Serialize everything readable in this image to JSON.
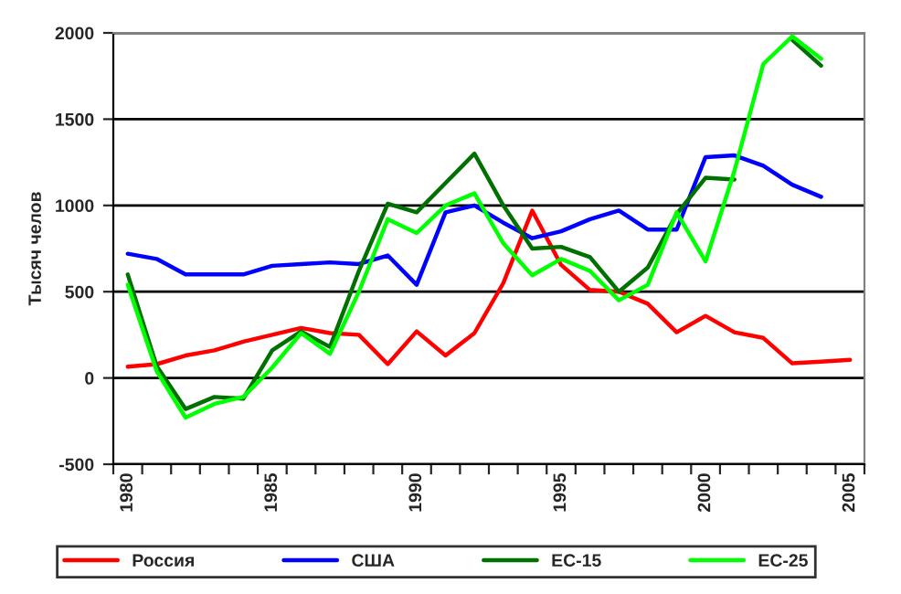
{
  "chart_data": {
    "type": "line",
    "ylabel": "Тысяч челов",
    "categories": [
      "1980",
      null,
      null,
      null,
      null,
      "1985",
      null,
      null,
      null,
      null,
      "1990",
      null,
      null,
      null,
      null,
      "1995",
      null,
      null,
      null,
      null,
      "2000",
      null,
      null,
      null,
      null,
      "2005"
    ],
    "series": [
      {
        "name": "Россия",
        "color": "#ff0000",
        "values": [
          65,
          80,
          130,
          160,
          210,
          250,
          290,
          260,
          250,
          80,
          270,
          130,
          260,
          550,
          970,
          655,
          510,
          500,
          430,
          265,
          360,
          265,
          232,
          85,
          95,
          105
        ]
      },
      {
        "name": "США",
        "color": "#0000ff",
        "values": [
          720,
          690,
          600,
          600,
          600,
          650,
          660,
          670,
          660,
          710,
          540,
          960,
          1000,
          900,
          810,
          850,
          920,
          970,
          860,
          860,
          1280,
          1290,
          1230,
          1120,
          1050,
          null
        ]
      },
      {
        "name": "ЕС-15",
        "color": "#007000",
        "values": [
          600,
          70,
          -180,
          -110,
          -120,
          160,
          270,
          180,
          620,
          1010,
          960,
          1130,
          1300,
          1000,
          750,
          760,
          700,
          500,
          640,
          950,
          1160,
          1150,
          null,
          1960,
          1810,
          null
        ]
      },
      {
        "name": "ЕС-25",
        "color": "#00ff00",
        "values": [
          540,
          40,
          -230,
          -150,
          -110,
          60,
          260,
          140,
          500,
          920,
          840,
          1000,
          1070,
          780,
          595,
          690,
          620,
          450,
          540,
          960,
          675,
          1200,
          1820,
          1980,
          1850,
          null
        ]
      }
    ],
    "ylim": [
      -500,
      2000
    ],
    "yticks": [
      -500,
      0,
      500,
      1000,
      1500,
      2000
    ],
    "grid": "y",
    "legend": "bottom",
    "line_style": "solid",
    "marker": "none"
  }
}
